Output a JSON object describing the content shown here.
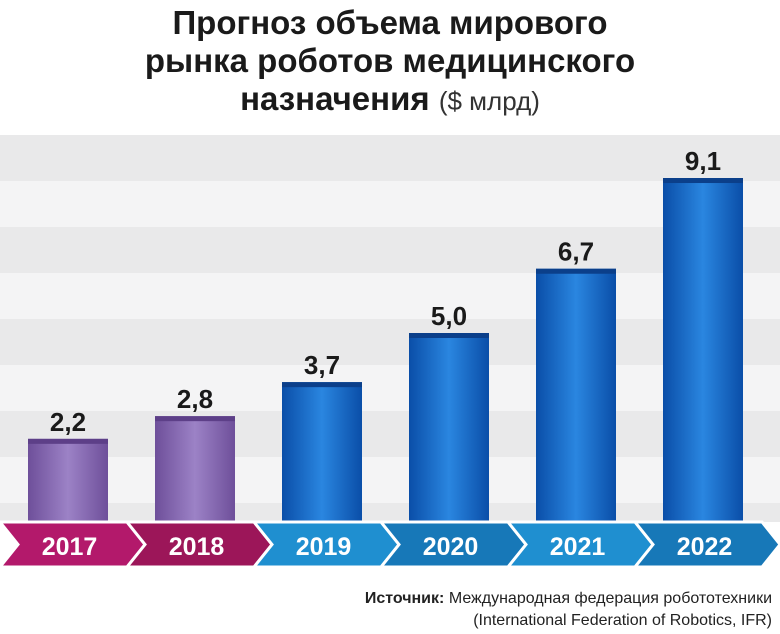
{
  "title": {
    "line1": "Прогноз объема мирового",
    "line2": "рынка роботов медицинского",
    "line3": "назначения",
    "unit": "($ млрд)"
  },
  "chart_data": {
    "type": "bar",
    "categories": [
      "2017",
      "2018",
      "2019",
      "2020",
      "2021",
      "2022"
    ],
    "values": [
      2.2,
      2.8,
      3.7,
      5.0,
      6.7,
      9.1
    ],
    "value_labels": [
      "2,2",
      "2,8",
      "3,7",
      "5,0",
      "6,7",
      "9,1"
    ],
    "ylim": [
      0,
      10
    ],
    "grid": "horizontal bands",
    "colors": {
      "past": "#8a6db5",
      "past_axis": "#a0185f",
      "forecast": "#1565c8",
      "forecast_axis": "#1e90c8"
    }
  },
  "source": {
    "label": "Источник:",
    "line1": "Международная федерация робототехники",
    "line2": "(International Federation of Robotics, IFR)"
  }
}
